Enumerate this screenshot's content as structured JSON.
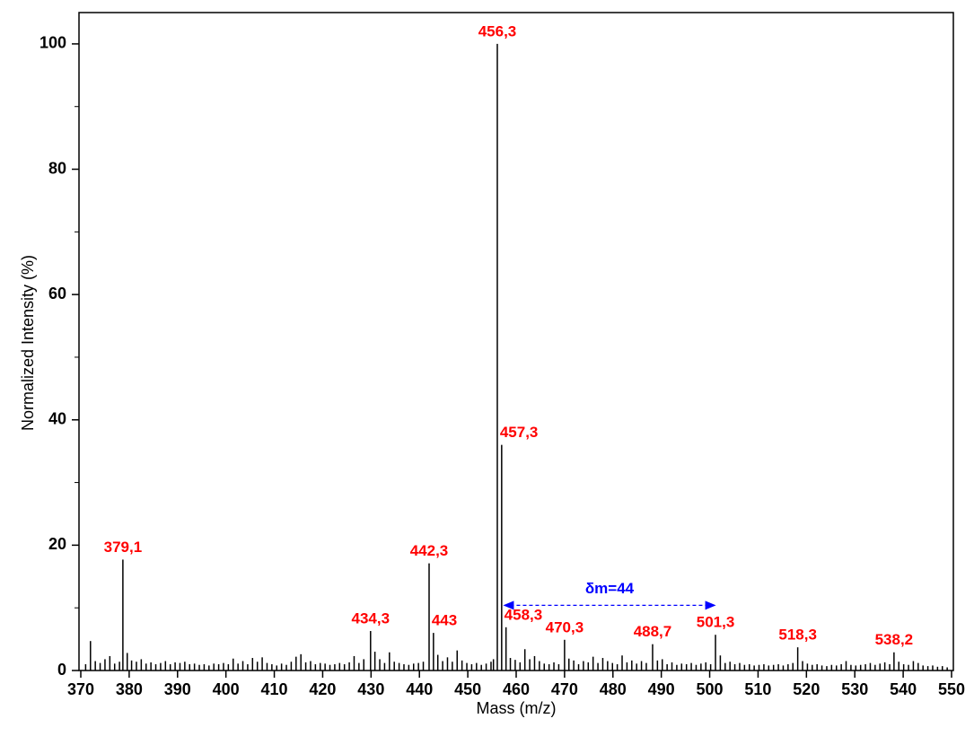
{
  "chart_data": {
    "type": "spectrum",
    "x_label": "Mass (m/z)",
    "y_label": "Normalized Intensity (%)",
    "color": "#000000",
    "label_color": "#ff0000",
    "xlim": [
      370,
      550
    ],
    "xticks": [
      370,
      380,
      390,
      400,
      410,
      420,
      430,
      440,
      450,
      460,
      470,
      480,
      490,
      500,
      510,
      520,
      530,
      540,
      550
    ],
    "ylim": [
      0,
      105
    ],
    "yticks": [
      0,
      20,
      40,
      60,
      80,
      100
    ],
    "yminorticks": [
      10,
      30,
      50,
      70,
      90
    ],
    "x": [
      371,
      372,
      373,
      374,
      375,
      376,
      377,
      378,
      378.7,
      379.6,
      380.5,
      381.5,
      382.5,
      383.5,
      384.5,
      385.5,
      386.5,
      387.5,
      388.5,
      389.5,
      390.5,
      391.5,
      392.5,
      393.5,
      394.5,
      395.5,
      396.5,
      397.5,
      398.5,
      399.5,
      400.5,
      401.5,
      402.5,
      403.5,
      404.5,
      405.5,
      406.5,
      407.5,
      408.5,
      409.5,
      410.5,
      411.5,
      412.5,
      413.5,
      414.5,
      415.5,
      416.5,
      417.5,
      418.5,
      419.5,
      420.5,
      421.5,
      422.5,
      423.5,
      424.5,
      425.5,
      426.5,
      427.5,
      428.5,
      429.9,
      430.8,
      431.8,
      432.8,
      433.8,
      434.8,
      435.8,
      436.8,
      437.8,
      438.8,
      439.8,
      440.8,
      442.0,
      442.9,
      443.8,
      444.8,
      445.8,
      446.8,
      447.8,
      448.8,
      449.8,
      450.8,
      451.8,
      452.8,
      453.8,
      454.8,
      455.3,
      456.1,
      457.0,
      457.9,
      458.8,
      459.8,
      460.8,
      461.8,
      462.8,
      463.8,
      464.8,
      465.8,
      466.8,
      467.8,
      468.8,
      470.0,
      470.9,
      471.9,
      472.9,
      473.9,
      474.9,
      475.9,
      476.9,
      477.9,
      478.9,
      479.9,
      480.9,
      481.9,
      482.9,
      483.9,
      484.9,
      485.9,
      486.9,
      488.2,
      489.2,
      490.2,
      491.2,
      492.2,
      493.2,
      494.2,
      495.2,
      496.2,
      497.2,
      498.2,
      499.2,
      500.2,
      501.2,
      502.2,
      503.2,
      504.2,
      505.2,
      506.2,
      507.2,
      508.2,
      509.2,
      510.2,
      511.2,
      512.2,
      513.2,
      514.2,
      515.2,
      516.2,
      517.2,
      518.2,
      519.2,
      520.2,
      521.2,
      522.2,
      523.2,
      524.2,
      525.2,
      526.2,
      527.2,
      528.2,
      529.2,
      530.2,
      531.2,
      532.2,
      533.2,
      534.2,
      535.2,
      536.2,
      537.2,
      538.1,
      539.1,
      540.1,
      541.1,
      542.1,
      543.1,
      544.1,
      545.1,
      546.1,
      547.1,
      548.1,
      549.1
    ],
    "values": [
      1,
      4.7,
      1.5,
      1.2,
      1.8,
      2.3,
      1.1,
      1.4,
      17.7,
      2.8,
      1.6,
      1.4,
      1.8,
      1.1,
      1.3,
      1.0,
      1.2,
      1.5,
      1.0,
      1.3,
      1.2,
      1.4,
      1.0,
      1.1,
      0.9,
      1.0,
      0.8,
      1.1,
      1.0,
      1.2,
      1.0,
      1.9,
      1.1,
      1.5,
      1.0,
      2.0,
      1.4,
      2.1,
      1.2,
      1.0,
      0.8,
      1.1,
      0.9,
      1.4,
      2.2,
      2.6,
      1.3,
      1.5,
      1.0,
      1.2,
      1.1,
      0.9,
      1.0,
      1.2,
      1.0,
      1.3,
      2.3,
      1.2,
      1.8,
      6.3,
      3.0,
      1.8,
      1.2,
      2.9,
      1.4,
      1.2,
      1.0,
      0.9,
      1.1,
      1.2,
      1.4,
      17.1,
      6.0,
      2.5,
      1.5,
      2.1,
      1.4,
      3.2,
      1.6,
      1.2,
      1.0,
      1.2,
      0.9,
      1.1,
      1.4,
      1.8,
      100,
      36,
      6.9,
      2.0,
      1.7,
      1.3,
      3.4,
      1.8,
      2.3,
      1.5,
      1.1,
      1.0,
      1.3,
      1.0,
      4.9,
      1.9,
      1.6,
      1.0,
      1.5,
      1.3,
      2.2,
      1.2,
      2.0,
      1.5,
      1.2,
      1.0,
      2.4,
      1.3,
      1.6,
      1.1,
      1.5,
      1.2,
      4.2,
      1.6,
      1.8,
      1.0,
      1.3,
      0.9,
      1.1,
      1.0,
      1.2,
      0.9,
      1.1,
      1.3,
      1.0,
      5.7,
      2.4,
      1.2,
      1.4,
      1.0,
      1.2,
      0.9,
      1.0,
      0.8,
      0.9,
      1.0,
      0.8,
      0.9,
      1.0,
      0.8,
      1.0,
      1.2,
      3.7,
      1.5,
      1.1,
      0.9,
      1.0,
      0.8,
      0.7,
      0.9,
      0.8,
      1.0,
      1.5,
      0.9,
      0.8,
      0.9,
      1.0,
      1.2,
      0.9,
      1.1,
      1.3,
      1.0,
      2.9,
      1.4,
      1.0,
      0.9,
      1.5,
      1.2,
      0.8,
      0.7,
      0.8,
      0.6,
      0.7,
      0.5
    ],
    "labels": [
      null,
      null,
      null,
      null,
      null,
      null,
      null,
      null,
      "379,1",
      null,
      null,
      null,
      null,
      null,
      null,
      null,
      null,
      null,
      null,
      null,
      null,
      null,
      null,
      null,
      null,
      null,
      null,
      null,
      null,
      null,
      null,
      null,
      null,
      null,
      null,
      null,
      null,
      null,
      null,
      null,
      null,
      null,
      null,
      null,
      null,
      null,
      null,
      null,
      null,
      null,
      null,
      null,
      null,
      null,
      null,
      null,
      null,
      null,
      null,
      "434,3",
      null,
      null,
      null,
      null,
      null,
      null,
      null,
      null,
      null,
      null,
      null,
      "442,3",
      "443",
      null,
      null,
      null,
      null,
      null,
      null,
      null,
      null,
      null,
      null,
      null,
      null,
      null,
      "456,3",
      "457,3",
      "458,3",
      null,
      null,
      null,
      null,
      null,
      null,
      null,
      null,
      null,
      null,
      null,
      "470,3",
      null,
      null,
      null,
      null,
      null,
      null,
      null,
      null,
      null,
      null,
      null,
      null,
      null,
      null,
      null,
      null,
      null,
      "488,7",
      null,
      null,
      null,
      null,
      null,
      null,
      null,
      null,
      null,
      null,
      null,
      null,
      "501,3",
      null,
      null,
      null,
      null,
      null,
      null,
      null,
      null,
      null,
      null,
      null,
      null,
      null,
      null,
      null,
      null,
      "518,3",
      null,
      null,
      null,
      null,
      null,
      null,
      null,
      null,
      null,
      null,
      null,
      null,
      null,
      null,
      null,
      null,
      null,
      null,
      null,
      "538,2",
      null,
      null,
      null,
      null,
      null,
      null,
      null,
      null,
      null,
      null,
      null
    ],
    "annotation": {
      "text": "δm=44",
      "from": 457.3,
      "to": 501.3,
      "y": 10.4,
      "color": "#0000ff"
    }
  }
}
